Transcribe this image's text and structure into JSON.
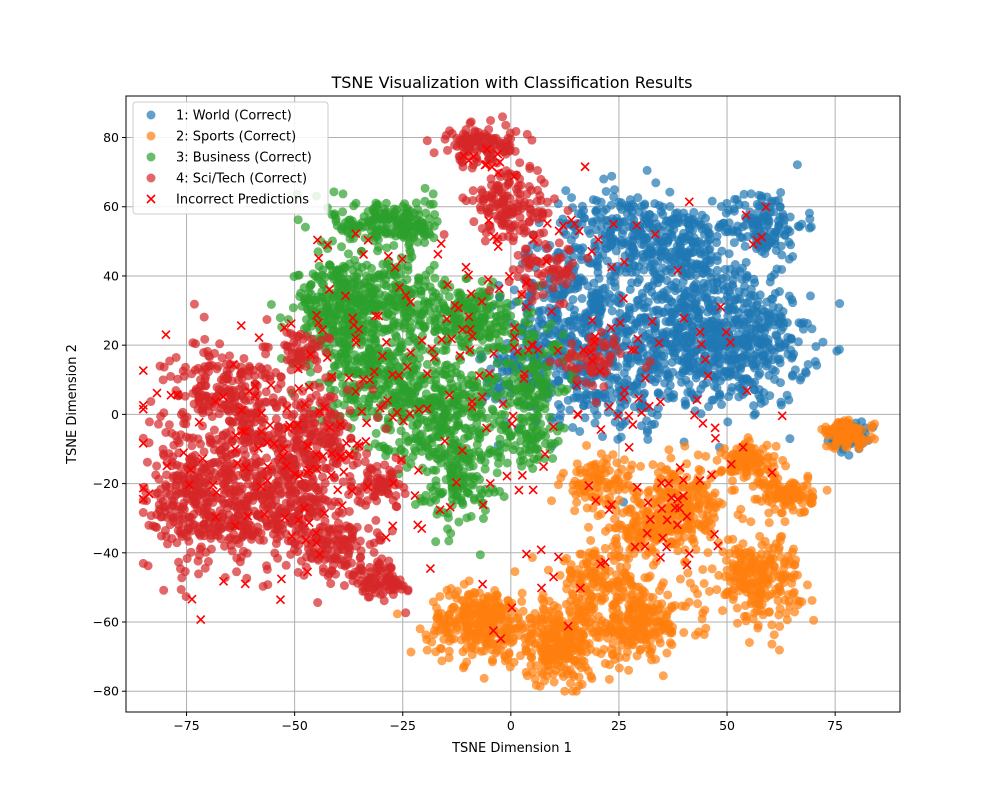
{
  "chart_data": {
    "type": "scatter",
    "title": "TSNE Visualization with Classification Results",
    "xlabel": "TSNE Dimension 1",
    "ylabel": "TSNE Dimension 2",
    "xlim": [
      -89,
      90
    ],
    "ylim": [
      -86,
      92
    ],
    "xticks": [
      -75,
      -50,
      -25,
      0,
      25,
      50,
      75
    ],
    "xtick_labels": [
      "−75",
      "−50",
      "−25",
      "0",
      "25",
      "50",
      "75"
    ],
    "yticks": [
      -80,
      -60,
      -40,
      -20,
      0,
      20,
      40,
      60,
      80
    ],
    "ytick_labels": [
      "−80",
      "−60",
      "−40",
      "−20",
      "0",
      "20",
      "40",
      "60",
      "80"
    ],
    "grid": true,
    "legend_position": "upper-left",
    "series": [
      {
        "name": "1: World (Correct)",
        "color": "#1f77b4",
        "marker": "circle",
        "clusters": [
          {
            "cx": 40,
            "cy": 25,
            "sx": 9,
            "sy": 12,
            "n": 520
          },
          {
            "cx": 55,
            "cy": 20,
            "sx": 7,
            "sy": 9,
            "n": 320
          },
          {
            "cx": 58,
            "cy": 55,
            "sx": 5,
            "sy": 5,
            "n": 150
          },
          {
            "cx": 38,
            "cy": 50,
            "sx": 6,
            "sy": 5,
            "n": 170
          },
          {
            "cx": 25,
            "cy": 55,
            "sx": 6,
            "sy": 6,
            "n": 150
          },
          {
            "cx": 15,
            "cy": 30,
            "sx": 8,
            "sy": 12,
            "n": 330
          },
          {
            "cx": 20,
            "cy": 10,
            "sx": 8,
            "sy": 7,
            "n": 180
          },
          {
            "cx": 3,
            "cy": 12,
            "sx": 5,
            "sy": 8,
            "n": 110
          },
          {
            "cx": 78,
            "cy": -6,
            "sx": 2,
            "sy": 2,
            "n": 90
          }
        ]
      },
      {
        "name": "2: Sports (Correct)",
        "color": "#ff7f0e",
        "marker": "circle",
        "clusters": [
          {
            "cx": -7,
            "cy": -60,
            "sx": 6,
            "sy": 5,
            "n": 300
          },
          {
            "cx": 12,
            "cy": -66,
            "sx": 6,
            "sy": 6,
            "n": 310
          },
          {
            "cx": 30,
            "cy": -60,
            "sx": 6,
            "sy": 5,
            "n": 220
          },
          {
            "cx": 20,
            "cy": -48,
            "sx": 5,
            "sy": 4,
            "n": 130
          },
          {
            "cx": 38,
            "cy": -27,
            "sx": 6,
            "sy": 6,
            "n": 250
          },
          {
            "cx": 57,
            "cy": -47,
            "sx": 5,
            "sy": 6,
            "n": 250
          },
          {
            "cx": 55,
            "cy": -14,
            "sx": 3,
            "sy": 3,
            "n": 110
          },
          {
            "cx": 64,
            "cy": -23,
            "sx": 3,
            "sy": 3,
            "n": 110
          },
          {
            "cx": 78,
            "cy": -6,
            "sx": 3,
            "sy": 2,
            "n": 90
          },
          {
            "cx": 20,
            "cy": -20,
            "sx": 4,
            "sy": 4,
            "n": 90
          },
          {
            "cx": 30,
            "cy": -35,
            "sx": 5,
            "sy": 3,
            "n": 80
          }
        ]
      },
      {
        "name": "3: Business (Correct)",
        "color": "#2ca02c",
        "marker": "circle",
        "clusters": [
          {
            "cx": -40,
            "cy": 30,
            "sx": 5,
            "sy": 7,
            "n": 280
          },
          {
            "cx": -30,
            "cy": 12,
            "sx": 7,
            "sy": 8,
            "n": 320
          },
          {
            "cx": -28,
            "cy": 35,
            "sx": 6,
            "sy": 6,
            "n": 180
          },
          {
            "cx": -30,
            "cy": 55,
            "sx": 6,
            "sy": 4,
            "n": 160
          },
          {
            "cx": -22,
            "cy": 55,
            "sx": 3,
            "sy": 3,
            "n": 50
          },
          {
            "cx": -10,
            "cy": 28,
            "sx": 6,
            "sy": 5,
            "n": 230
          },
          {
            "cx": -15,
            "cy": 0,
            "sx": 8,
            "sy": 8,
            "n": 320
          },
          {
            "cx": -12,
            "cy": -20,
            "sx": 5,
            "sy": 6,
            "n": 120
          },
          {
            "cx": 5,
            "cy": 10,
            "sx": 5,
            "sy": 8,
            "n": 130
          },
          {
            "cx": 5,
            "cy": -8,
            "sx": 3,
            "sy": 4,
            "n": 50
          }
        ]
      },
      {
        "name": "4: Sci/Tech (Correct)",
        "color": "#d62728",
        "marker": "circle",
        "clusters": [
          {
            "cx": -70,
            "cy": -25,
            "sx": 7,
            "sy": 10,
            "n": 430
          },
          {
            "cx": -65,
            "cy": 5,
            "sx": 7,
            "sy": 8,
            "n": 280
          },
          {
            "cx": -52,
            "cy": -25,
            "sx": 6,
            "sy": 8,
            "n": 300
          },
          {
            "cx": -45,
            "cy": -5,
            "sx": 5,
            "sy": 7,
            "n": 180
          },
          {
            "cx": -40,
            "cy": -38,
            "sx": 5,
            "sy": 5,
            "n": 140
          },
          {
            "cx": -30,
            "cy": -48,
            "sx": 3,
            "sy": 3,
            "n": 80
          },
          {
            "cx": -30,
            "cy": -20,
            "sx": 3,
            "sy": 3,
            "n": 70
          },
          {
            "cx": -6,
            "cy": 78,
            "sx": 5,
            "sy": 3,
            "n": 130
          },
          {
            "cx": 0,
            "cy": 60,
            "sx": 5,
            "sy": 5,
            "n": 150
          },
          {
            "cx": 8,
            "cy": 42,
            "sx": 4,
            "sy": 4,
            "n": 70
          },
          {
            "cx": 20,
            "cy": 15,
            "sx": 4,
            "sy": 4,
            "n": 60
          },
          {
            "cx": -48,
            "cy": 18,
            "sx": 3,
            "sy": 3,
            "n": 50
          }
        ]
      },
      {
        "name": "Incorrect Predictions",
        "color": "#ff0000",
        "marker": "x",
        "clusters": [
          {
            "cx": -55,
            "cy": -10,
            "sx": 18,
            "sy": 20,
            "n": 110
          },
          {
            "cx": -28,
            "cy": 20,
            "sx": 12,
            "sy": 22,
            "n": 70
          },
          {
            "cx": 0,
            "cy": 20,
            "sx": 14,
            "sy": 25,
            "n": 70
          },
          {
            "cx": 30,
            "cy": 10,
            "sx": 15,
            "sy": 22,
            "n": 50
          },
          {
            "cx": 35,
            "cy": -25,
            "sx": 10,
            "sy": 10,
            "n": 30
          },
          {
            "cx": -6,
            "cy": 75,
            "sx": 4,
            "sy": 4,
            "n": 10
          },
          {
            "cx": 60,
            "cy": 52,
            "sx": 4,
            "sy": 4,
            "n": 5
          },
          {
            "cx": 10,
            "cy": -45,
            "sx": 15,
            "sy": 10,
            "n": 15
          }
        ]
      }
    ]
  }
}
